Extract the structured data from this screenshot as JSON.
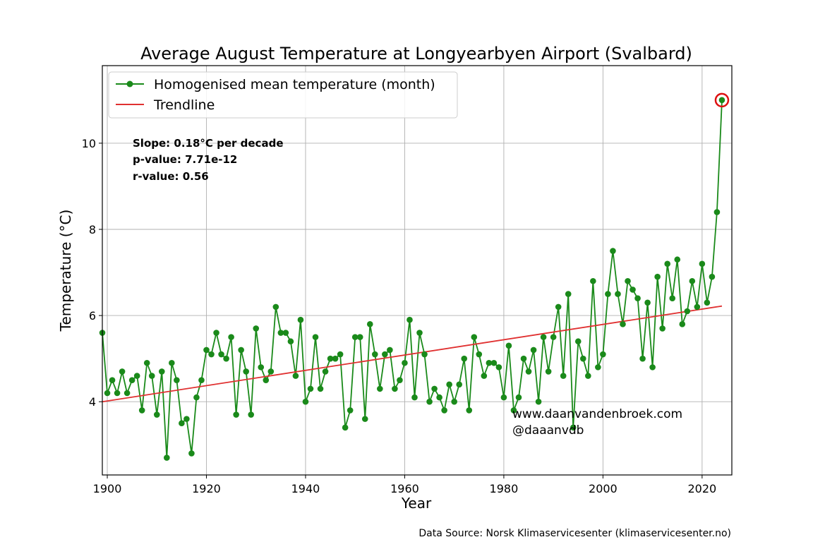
{
  "chart_data": {
    "type": "line",
    "title": "Average August Temperature at Longyearbyen Airport (Svalbard)",
    "xlabel": "Year",
    "ylabel": "Temperature (°C)",
    "xlim": [
      1899,
      2026
    ],
    "ylim": [
      2.3,
      11.8
    ],
    "x_ticks": [
      1900,
      1920,
      1940,
      1960,
      1980,
      2000,
      2020
    ],
    "y_ticks": [
      4,
      6,
      8,
      10
    ],
    "grid": true,
    "legend_placement": "top-left",
    "series": [
      {
        "name": "Homogenised mean temperature (month)",
        "color": "#1a8a1a",
        "marker": "circle",
        "x": [
          1899,
          1900,
          1901,
          1902,
          1903,
          1904,
          1905,
          1906,
          1907,
          1908,
          1909,
          1910,
          1911,
          1912,
          1913,
          1914,
          1915,
          1916,
          1917,
          1918,
          1919,
          1920,
          1921,
          1922,
          1923,
          1924,
          1925,
          1926,
          1927,
          1928,
          1929,
          1930,
          1931,
          1932,
          1933,
          1934,
          1935,
          1936,
          1937,
          1938,
          1939,
          1940,
          1941,
          1942,
          1943,
          1944,
          1945,
          1946,
          1947,
          1948,
          1949,
          1950,
          1951,
          1952,
          1953,
          1954,
          1955,
          1956,
          1957,
          1958,
          1959,
          1960,
          1961,
          1962,
          1963,
          1964,
          1965,
          1966,
          1967,
          1968,
          1969,
          1970,
          1971,
          1972,
          1973,
          1974,
          1975,
          1976,
          1977,
          1978,
          1979,
          1980,
          1981,
          1982,
          1983,
          1984,
          1985,
          1986,
          1987,
          1988,
          1989,
          1990,
          1991,
          1992,
          1993,
          1994,
          1995,
          1996,
          1997,
          1998,
          1999,
          2000,
          2001,
          2002,
          2003,
          2004,
          2005,
          2006,
          2007,
          2008,
          2009,
          2010,
          2011,
          2012,
          2013,
          2014,
          2015,
          2016,
          2017,
          2018,
          2019,
          2020,
          2021,
          2022,
          2023,
          2024
        ],
        "y": [
          5.6,
          4.2,
          4.5,
          4.2,
          4.7,
          4.2,
          4.5,
          4.6,
          3.8,
          4.9,
          4.6,
          3.7,
          4.7,
          2.7,
          4.9,
          4.5,
          3.5,
          3.6,
          2.8,
          4.1,
          4.5,
          5.2,
          5.1,
          5.6,
          5.1,
          5.0,
          5.5,
          3.7,
          5.2,
          4.7,
          3.7,
          5.7,
          4.8,
          4.5,
          4.7,
          6.2,
          5.6,
          5.6,
          5.4,
          4.6,
          5.9,
          4.0,
          4.3,
          5.5,
          4.3,
          4.7,
          5.0,
          5.0,
          5.1,
          3.4,
          3.8,
          5.5,
          5.5,
          3.6,
          5.8,
          5.1,
          4.3,
          5.1,
          5.2,
          4.3,
          4.5,
          4.9,
          5.9,
          4.1,
          5.6,
          5.1,
          4.0,
          4.3,
          4.1,
          3.8,
          4.4,
          4.0,
          4.4,
          5.0,
          3.8,
          5.5,
          5.1,
          4.6,
          4.9,
          4.9,
          4.8,
          4.1,
          5.3,
          3.8,
          4.1,
          5.0,
          4.7,
          5.2,
          4.0,
          5.5,
          4.7,
          5.5,
          6.2,
          4.6,
          6.5,
          3.4,
          5.4,
          5.0,
          4.6,
          6.8,
          4.8,
          5.1,
          6.5,
          7.5,
          6.5,
          5.8,
          6.8,
          6.6,
          6.4,
          5.0,
          6.3,
          4.8,
          6.9,
          5.7,
          7.2,
          6.4,
          7.3,
          5.8,
          6.1,
          6.8,
          6.2,
          7.2,
          6.3,
          6.9,
          8.4,
          11.0
        ]
      },
      {
        "name": "Trendline",
        "color": "#e03030",
        "x": [
          1899,
          2024
        ],
        "y": [
          4.0,
          6.22
        ]
      }
    ],
    "highlight": {
      "x": 2024,
      "y": 11.0,
      "color": "#dd1111"
    },
    "stats": {
      "slope": "Slope: 0.18°C per decade",
      "p_value": "p-value: 7.71e-12",
      "r_value": "r-value: 0.56"
    },
    "credits": [
      "www.daanvandenbroek.com",
      "@daaanvdb"
    ],
    "source": "Data Source: Norsk Klimaservicesenter (klimaservicesenter.no)"
  }
}
